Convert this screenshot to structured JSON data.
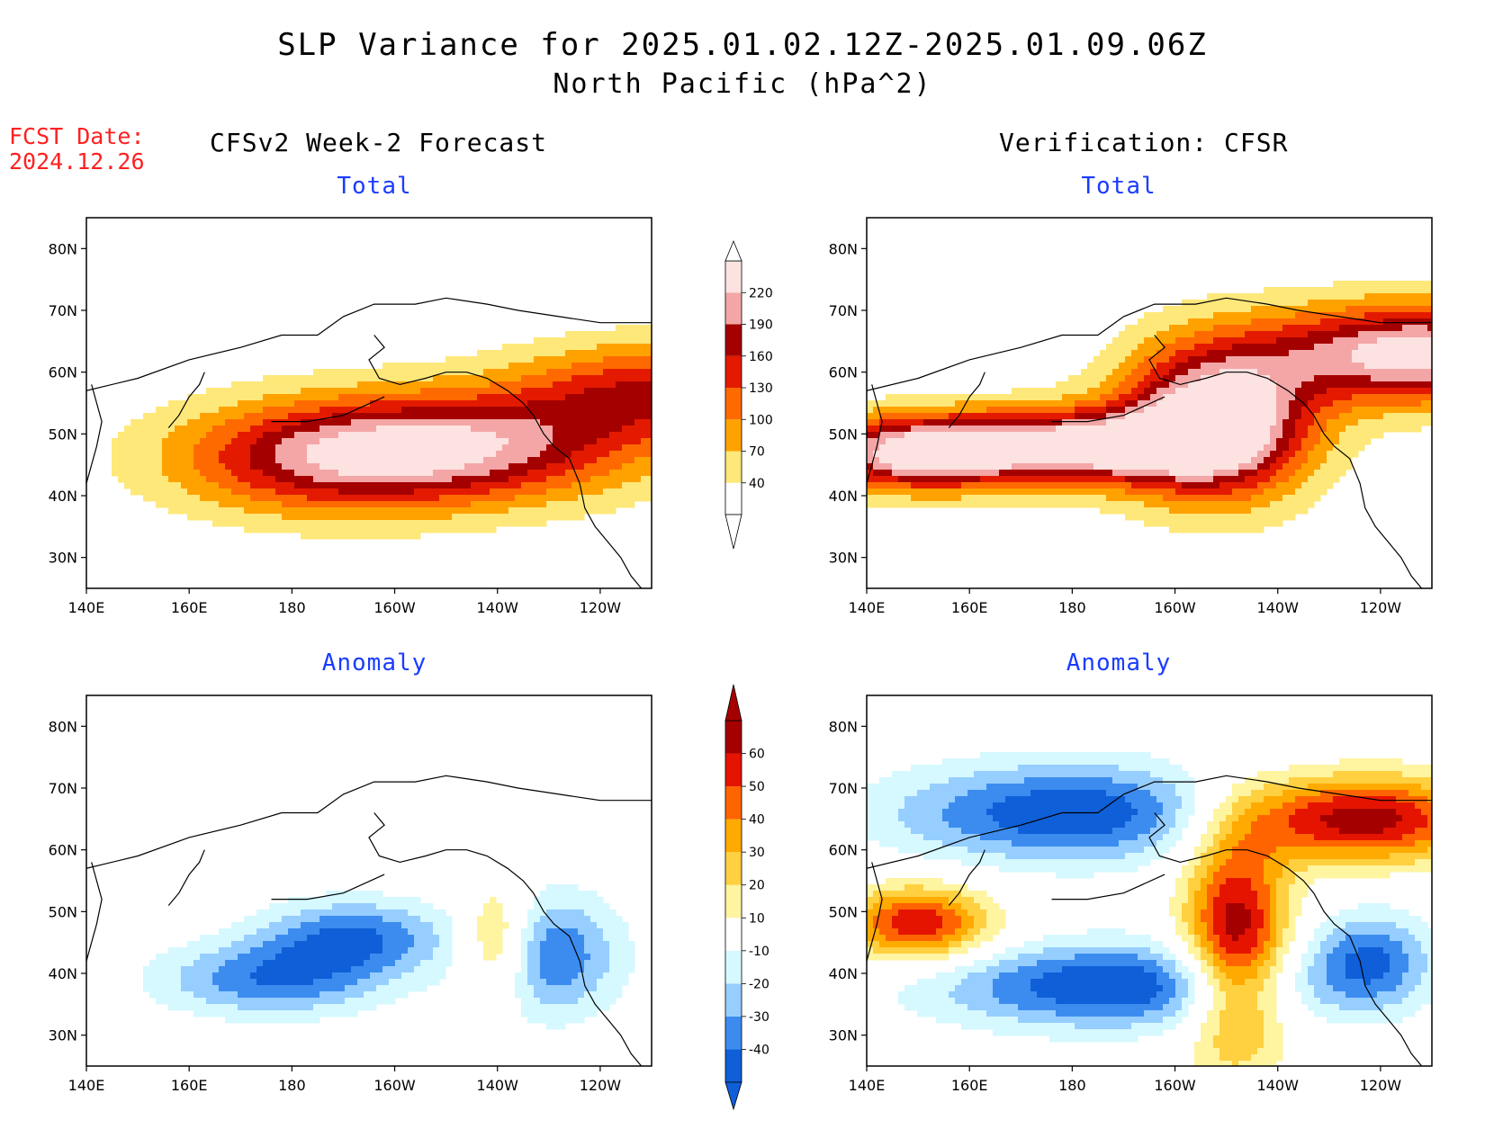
{
  "title": "SLP Variance for 2025.01.02.12Z-2025.01.09.06Z",
  "subtitle": "North Pacific (hPa^2)",
  "fcst_label": {
    "line1": "FCST Date:",
    "line2": "2024.12.26"
  },
  "columns": {
    "left": "CFSv2 Week-2 Forecast",
    "right": "Verification: CFSR"
  },
  "panel_titles": {
    "total": "Total",
    "anomaly": "Anomaly"
  },
  "colors": {
    "total_levels": [
      "#fee87a",
      "#ffa200",
      "#ff6a00",
      "#e31a00",
      "#a50000",
      "#f4a6a6",
      "#fde2e2"
    ],
    "anomaly_levels": [
      "#0f5fd8",
      "#3c8cf0",
      "#96ceff",
      "#d6f8ff",
      "#ffffff",
      "#fff4a0",
      "#ffd040",
      "#ffaa00",
      "#ff6400",
      "#e51400",
      "#a50000"
    ],
    "title_blue": "#1a3cff",
    "fcst_red": "#ff2020"
  },
  "chart_data": [
    {
      "type": "heatmap",
      "panel": "CFSv2 Week-2 Forecast - Total",
      "x_ticks": [
        "140E",
        "160E",
        "180",
        "160W",
        "140W",
        "120W"
      ],
      "y_ticks": [
        "30N",
        "40N",
        "50N",
        "60N",
        "70N",
        "80N"
      ],
      "xlim": [
        140,
        250
      ],
      "ylim": [
        25,
        85
      ],
      "blobs": [
        {
          "lon": 185,
          "lat": 46,
          "peak": 140
        },
        {
          "lon": 215,
          "lat": 48,
          "peak": 170
        },
        {
          "lon": 250,
          "lat": 57,
          "peak": 130
        }
      ]
    },
    {
      "type": "heatmap",
      "panel": "Verification: CFSR - Total",
      "x_ticks": [
        "140E",
        "160E",
        "180",
        "160W",
        "140W",
        "120W"
      ],
      "y_ticks": [
        "30N",
        "40N",
        "50N",
        "60N",
        "70N",
        "80N"
      ],
      "xlim": [
        140,
        250
      ],
      "ylim": [
        25,
        85
      ],
      "blobs": [
        {
          "lon": 150,
          "lat": 47,
          "peak": 230
        },
        {
          "lon": 182,
          "lat": 48,
          "peak": 220
        },
        {
          "lon": 208,
          "lat": 52,
          "peak": 260
        },
        {
          "lon": 247,
          "lat": 63,
          "peak": 230
        }
      ]
    },
    {
      "type": "heatmap",
      "panel": "CFSv2 Week-2 Forecast - Anomaly",
      "x_ticks": [
        "140E",
        "160E",
        "180",
        "160W",
        "140W",
        "120W"
      ],
      "y_ticks": [
        "30N",
        "40N",
        "50N",
        "60N",
        "70N",
        "80N"
      ],
      "xlim": [
        140,
        250
      ],
      "ylim": [
        25,
        85
      ],
      "blobs": [
        {
          "lon": 192,
          "lat": 46,
          "peak": -40
        },
        {
          "lon": 176,
          "lat": 39,
          "peak": -38
        },
        {
          "lon": 220,
          "lat": 45,
          "peak": 40
        },
        {
          "lon": 230,
          "lat": 43,
          "peak": -40
        }
      ]
    },
    {
      "type": "heatmap",
      "panel": "Verification: CFSR - Anomaly",
      "x_ticks": [
        "140E",
        "160E",
        "180",
        "160W",
        "140W",
        "120W"
      ],
      "y_ticks": [
        "30N",
        "40N",
        "50N",
        "60N",
        "70N",
        "80N"
      ],
      "xlim": [
        140,
        250
      ],
      "ylim": [
        25,
        85
      ],
      "blobs": [
        {
          "lon": 180,
          "lat": 66,
          "peak": -50
        },
        {
          "lon": 188,
          "lat": 38,
          "peak": -50
        },
        {
          "lon": 212,
          "lat": 45,
          "peak": 70
        },
        {
          "lon": 150,
          "lat": 48,
          "peak": 60
        },
        {
          "lon": 235,
          "lat": 65,
          "peak": 70
        },
        {
          "lon": 238,
          "lat": 42,
          "peak": -40
        }
      ]
    }
  ],
  "colorbars": {
    "total": {
      "labels": [
        "220",
        "190",
        "160",
        "130",
        "100",
        "70",
        "40"
      ]
    },
    "anomaly": {
      "labels": [
        "60",
        "50",
        "40",
        "30",
        "20",
        "10",
        "-10",
        "-20",
        "-30",
        "-40"
      ]
    }
  }
}
